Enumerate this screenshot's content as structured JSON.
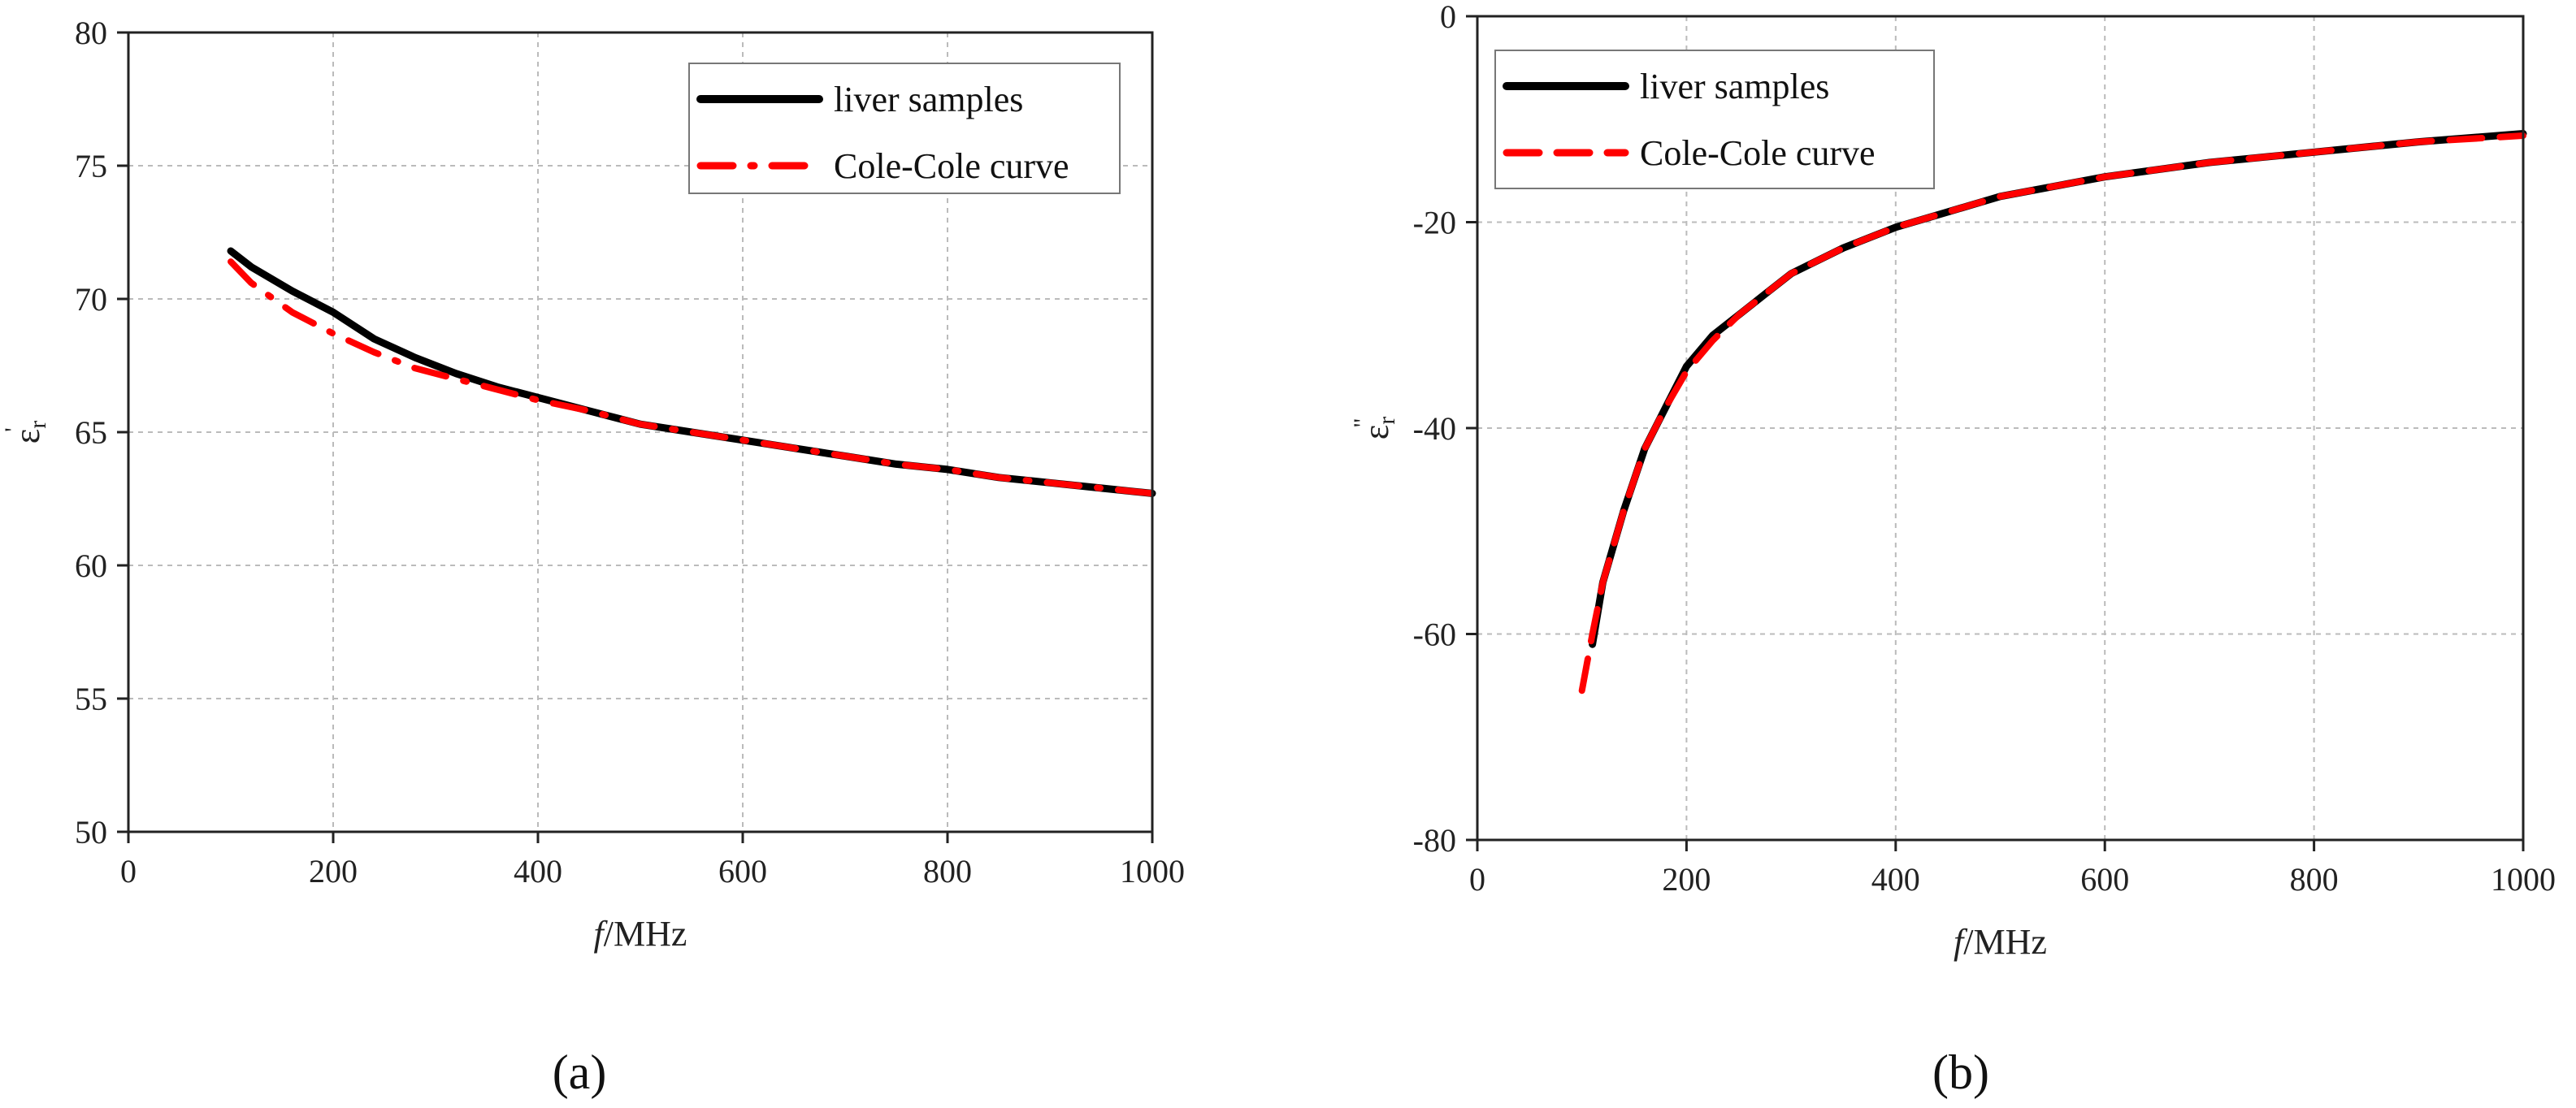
{
  "chart_data": [
    {
      "type": "line",
      "panel_label": "(a)",
      "xlabel_italic": "f",
      "xlabel_unit": "/MHz",
      "ylabel_symbol": "ε",
      "ylabel_sub": "r",
      "ylabel_sup": "'",
      "xlim": [
        0,
        1000
      ],
      "ylim": [
        50,
        80
      ],
      "xticks": [
        0,
        200,
        400,
        600,
        800,
        1000
      ],
      "yticks": [
        50,
        55,
        60,
        65,
        70,
        75,
        80
      ],
      "grid": true,
      "legend_position": "top-right",
      "series": [
        {
          "name": "liver samples",
          "color": "#000000",
          "style": "solid",
          "x": [
            100,
            120,
            160,
            200,
            240,
            280,
            320,
            360,
            400,
            450,
            500,
            550,
            600,
            650,
            700,
            750,
            800,
            850,
            900,
            950,
            1000
          ],
          "y": [
            71.8,
            71.2,
            70.3,
            69.5,
            68.5,
            67.8,
            67.2,
            66.7,
            66.3,
            65.8,
            65.3,
            65.0,
            64.7,
            64.4,
            64.1,
            63.8,
            63.6,
            63.3,
            63.1,
            62.9,
            62.7
          ]
        },
        {
          "name": "Cole-Cole curve",
          "color": "#ff0000",
          "style": "dash-dot",
          "x": [
            100,
            120,
            160,
            200,
            240,
            280,
            320,
            360,
            400,
            450,
            500,
            550,
            600,
            650,
            700,
            750,
            800,
            850,
            900,
            950,
            1000
          ],
          "y": [
            71.4,
            70.6,
            69.5,
            68.7,
            68.0,
            67.4,
            67.0,
            66.6,
            66.2,
            65.8,
            65.3,
            65.0,
            64.7,
            64.4,
            64.1,
            63.8,
            63.6,
            63.3,
            63.1,
            62.9,
            62.7
          ]
        }
      ]
    },
    {
      "type": "line",
      "panel_label": "(b)",
      "xlabel_italic": "f",
      "xlabel_unit": "/MHz",
      "ylabel_symbol": "ε",
      "ylabel_sub": "r",
      "ylabel_sup": "\"",
      "xlim": [
        0,
        1000
      ],
      "ylim": [
        -80,
        0
      ],
      "xticks": [
        0,
        200,
        400,
        600,
        800,
        1000
      ],
      "yticks": [
        -80,
        -60,
        -40,
        -20,
        0
      ],
      "grid": true,
      "legend_position": "top-left",
      "series": [
        {
          "name": "liver samples",
          "color": "#000000",
          "style": "solid",
          "x": [
            110,
            120,
            140,
            160,
            180,
            200,
            225,
            250,
            275,
            300,
            350,
            400,
            450,
            500,
            600,
            700,
            800,
            900,
            1000
          ],
          "y": [
            -61,
            -55,
            -48,
            -42,
            -38,
            -34,
            -31,
            -29,
            -27,
            -25,
            -22.5,
            -20.5,
            -19,
            -17.5,
            -15.6,
            -14.2,
            -13.2,
            -12.2,
            -11.4
          ]
        },
        {
          "name": "Cole-Cole curve",
          "color": "#ff0000",
          "style": "dashed",
          "x": [
            100,
            110,
            120,
            140,
            160,
            180,
            200,
            225,
            250,
            275,
            300,
            350,
            400,
            450,
            500,
            600,
            700,
            800,
            900,
            1000
          ],
          "y": [
            -65.5,
            -60,
            -55,
            -48,
            -42,
            -38,
            -34.5,
            -31.5,
            -29,
            -27,
            -25,
            -22.5,
            -20.5,
            -19,
            -17.5,
            -15.6,
            -14.2,
            -13.2,
            -12.2,
            -11.6
          ]
        }
      ]
    }
  ]
}
